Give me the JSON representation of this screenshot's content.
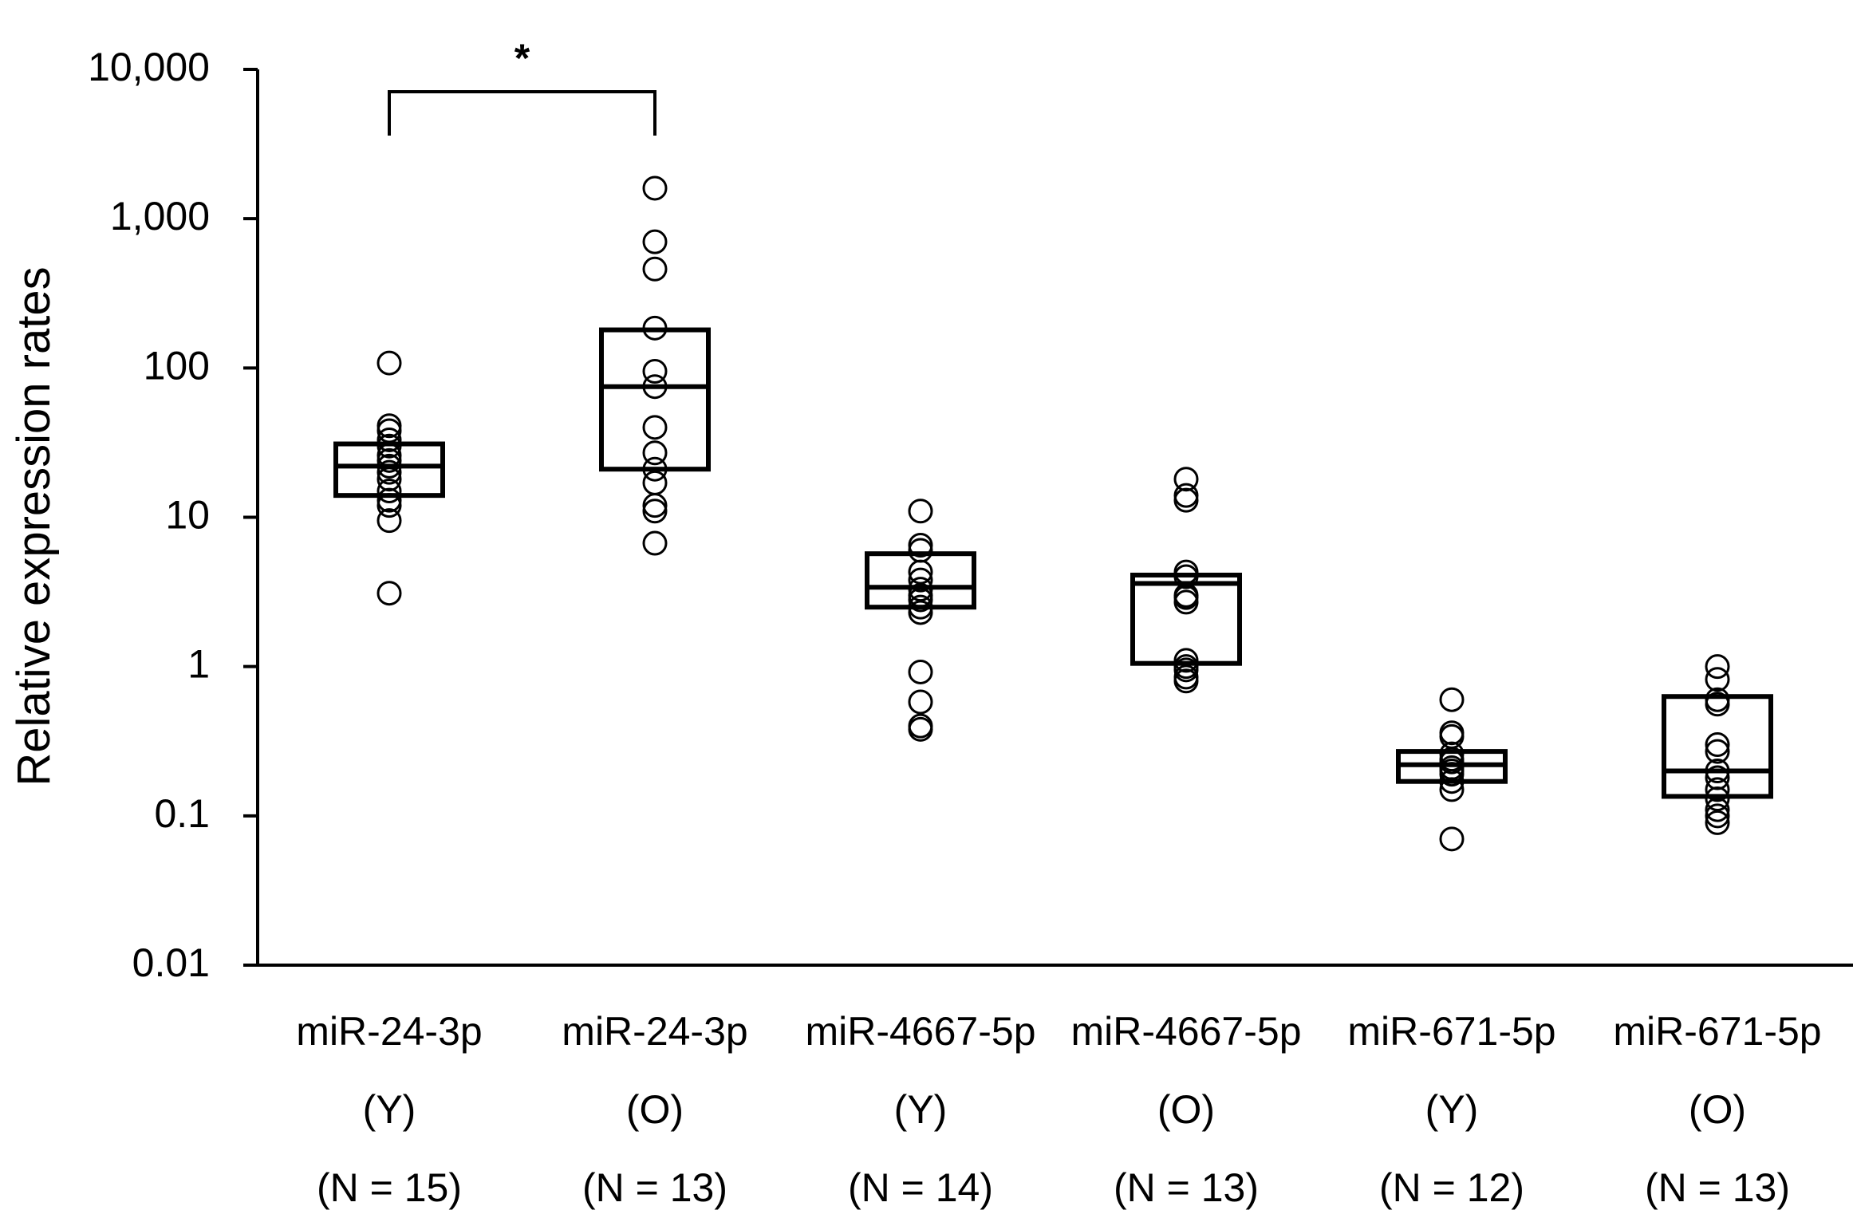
{
  "chart_data": {
    "type": "scatter",
    "subtype": "dot plot with box (interquartile range and median)",
    "yscale": "log",
    "ylabel": "Relative expression rates",
    "xlabel": "",
    "ylim": [
      0.01,
      10000
    ],
    "yticks": [
      0.01,
      0.1,
      1,
      10,
      100,
      1000,
      10000
    ],
    "ytick_labels": [
      "0.01",
      "0.1",
      "1",
      "10",
      "100",
      "1,000",
      "10,000"
    ],
    "grid": false,
    "categories": [
      {
        "lines": [
          "miR-24-3p",
          "(Y)",
          "(N = 15)"
        ],
        "box": {
          "q1": 14,
          "median": 22,
          "q3": 31
        },
        "points": [
          108,
          41,
          38,
          33,
          30,
          26,
          24,
          22,
          20,
          18,
          15,
          13,
          12,
          9.5,
          3.1
        ]
      },
      {
        "lines": [
          "miR-24-3p",
          "(O)",
          "(N = 13)"
        ],
        "box": {
          "q1": 21,
          "median": 75,
          "q3": 180
        },
        "points": [
          1600,
          700,
          460,
          185,
          95,
          75,
          40,
          27,
          21,
          17,
          12,
          11,
          6.7
        ]
      },
      {
        "lines": [
          "miR-4667-5p",
          "(Y)",
          "(N = 14)"
        ],
        "box": {
          "q1": 2.5,
          "median": 3.4,
          "q3": 5.7
        },
        "points": [
          11,
          6.5,
          6.0,
          4.3,
          3.8,
          3.3,
          3.0,
          2.8,
          2.5,
          2.3,
          0.92,
          0.58,
          0.4,
          0.38
        ]
      },
      {
        "lines": [
          "miR-4667-5p",
          "(O)",
          "(N = 13)"
        ],
        "box": {
          "q1": 1.05,
          "median": 3.6,
          "q3": 4.1
        },
        "points": [
          18,
          14,
          13,
          4.3,
          4.0,
          3.0,
          2.9,
          2.7,
          1.1,
          1.0,
          0.95,
          0.85,
          0.8
        ]
      },
      {
        "lines": [
          "miR-671-5p",
          "(Y)",
          "(N = 12)"
        ],
        "box": {
          "q1": 0.17,
          "median": 0.22,
          "q3": 0.27
        },
        "points": [
          0.6,
          0.36,
          0.34,
          0.26,
          0.24,
          0.23,
          0.21,
          0.2,
          0.19,
          0.17,
          0.15,
          0.07
        ]
      },
      {
        "lines": [
          "miR-671-5p",
          "(O)",
          "(N = 13)"
        ],
        "box": {
          "q1": 0.135,
          "median": 0.2,
          "q3": 0.63
        },
        "points": [
          1.0,
          0.82,
          0.6,
          0.56,
          0.3,
          0.27,
          0.2,
          0.18,
          0.15,
          0.13,
          0.11,
          0.1,
          0.09
        ]
      }
    ],
    "annotations": [
      {
        "type": "significance-bracket",
        "from_category": 0,
        "to_category": 1,
        "text": "*"
      }
    ]
  }
}
